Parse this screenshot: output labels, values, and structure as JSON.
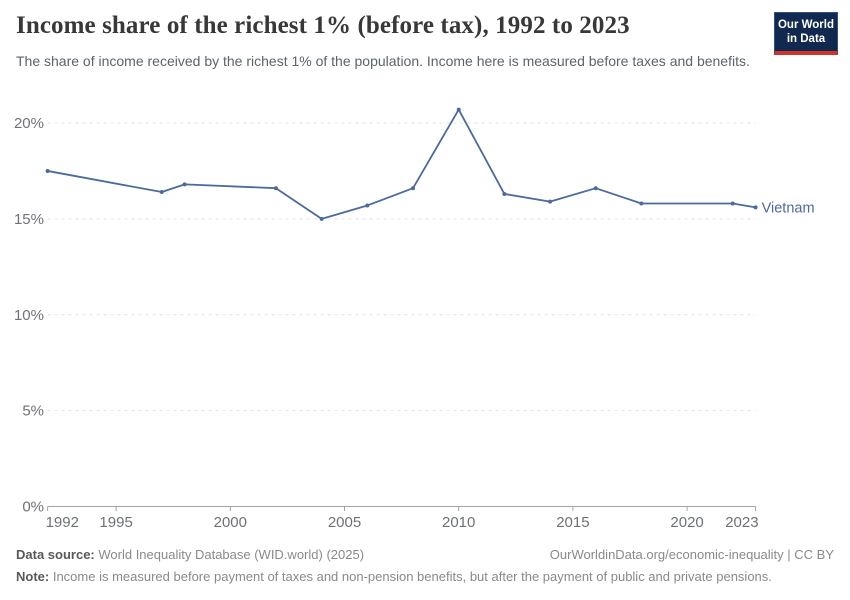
{
  "header": {
    "title": "Income share of the richest 1% (before tax), 1992 to 2023",
    "subtitle": "The share of income received by the richest 1% of the population. Income here is measured before taxes and benefits.",
    "logo": {
      "line1": "Our World",
      "line2": "in Data"
    }
  },
  "chart_data": {
    "type": "line",
    "title": "Income share of the richest 1% (before tax), 1992 to 2023",
    "series": [
      {
        "name": "Vietnam",
        "x": [
          1992,
          1997,
          1998,
          2002,
          2004,
          2006,
          2008,
          2010,
          2012,
          2014,
          2016,
          2018,
          2022,
          2023
        ],
        "values": [
          17.5,
          16.4,
          16.8,
          16.6,
          15.0,
          15.7,
          16.6,
          20.7,
          16.3,
          15.9,
          16.6,
          15.8,
          15.8,
          15.6
        ]
      }
    ],
    "xlabel": "",
    "ylabel": "",
    "xlim": [
      1992,
      2023
    ],
    "ylim": [
      0,
      20.75
    ],
    "x_ticks": [
      1992,
      1995,
      2000,
      2005,
      2010,
      2015,
      2020,
      2023
    ],
    "y_ticks": [
      0,
      5,
      10,
      15,
      20
    ],
    "y_tick_suffix": "%",
    "grid": "horizontal-dashed",
    "legend_position": "end-of-line-label"
  },
  "footer": {
    "datasource_label": "Data source:",
    "datasource_value": "World Inequality Database (WID.world) (2025)",
    "link": "OurWorldinData.org/economic-inequality | CC BY",
    "note_label": "Note:",
    "note_value": "Income is measured before payment of taxes and non-pension benefits, but after the payment of public and private pensions."
  },
  "colors": {
    "line": "#4C6A9C",
    "grid": "#e3e3e3",
    "axis": "#a0a5aa",
    "tick_label": "#6e7177",
    "logo_bg": "#12294f",
    "logo_stripe": "#cf342c"
  }
}
